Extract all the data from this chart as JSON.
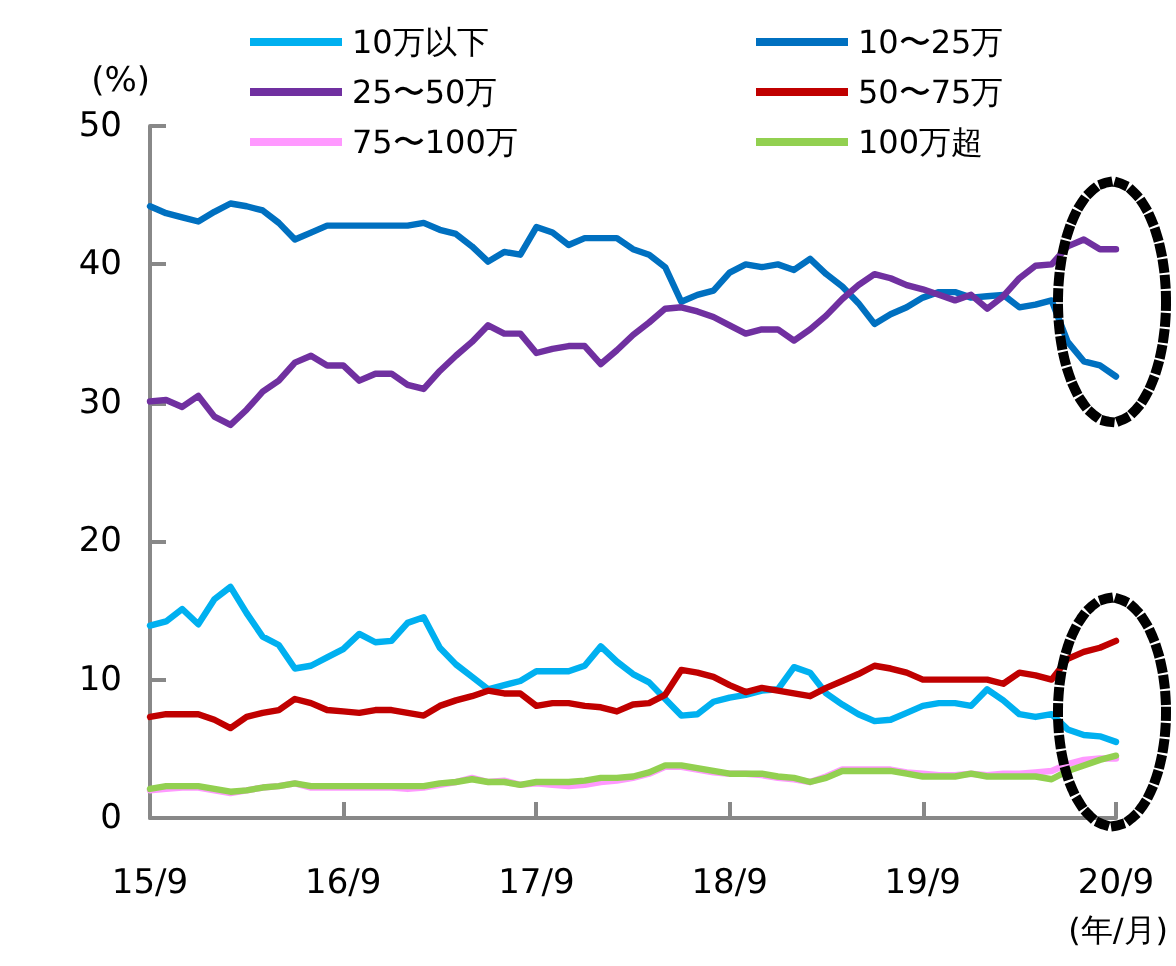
{
  "chart_data": {
    "type": "line",
    "ylabel": "(%)",
    "xlabel": "(年/月)",
    "categories": [
      "15/9",
      null,
      null,
      null,
      null,
      null,
      null,
      null,
      null,
      null,
      null,
      null,
      "16/9",
      null,
      null,
      null,
      null,
      null,
      null,
      null,
      null,
      null,
      null,
      null,
      "17/9",
      null,
      null,
      null,
      null,
      null,
      null,
      null,
      null,
      null,
      null,
      null,
      "18/9",
      null,
      null,
      null,
      null,
      null,
      null,
      null,
      null,
      null,
      null,
      null,
      "19/9",
      null,
      null,
      null,
      null,
      null,
      null,
      null,
      null,
      null,
      null,
      null,
      "20/9"
    ],
    "series": [
      {
        "name": "10万以下",
        "color": "#00b0f0",
        "values": [
          13.9,
          14.2,
          15.1,
          14.0,
          15.8,
          16.7,
          14.8,
          13.1,
          12.5,
          10.8,
          11.0,
          11.6,
          12.2,
          13.3,
          12.7,
          12.8,
          14.1,
          14.5,
          12.3,
          11.1,
          10.2,
          9.3,
          9.6,
          9.9,
          10.6,
          10.6,
          10.6,
          11.0,
          12.4,
          11.3,
          10.4,
          9.8,
          8.6,
          7.4,
          7.5,
          8.4,
          8.7,
          8.9,
          9.2,
          9.3,
          10.9,
          10.5,
          9.0,
          8.2,
          7.5,
          7.0,
          7.1,
          7.6,
          8.1,
          8.3,
          8.3,
          8.1,
          9.3,
          8.5,
          7.5,
          7.3,
          7.5,
          6.4,
          6.0,
          5.9,
          5.5
        ]
      },
      {
        "name": "10〜25万",
        "color": "#0070c0",
        "values": [
          44.2,
          43.7,
          43.4,
          43.1,
          43.8,
          44.4,
          44.2,
          43.9,
          43.0,
          41.8,
          42.3,
          42.8,
          42.8,
          42.8,
          42.8,
          42.8,
          42.8,
          43.0,
          42.5,
          42.2,
          41.3,
          40.2,
          40.9,
          40.7,
          42.7,
          42.3,
          41.4,
          41.9,
          41.9,
          41.9,
          41.1,
          40.7,
          39.8,
          37.3,
          37.8,
          38.1,
          39.4,
          40.0,
          39.8,
          40.0,
          39.6,
          40.4,
          39.3,
          38.4,
          37.2,
          35.7,
          36.4,
          36.9,
          37.6,
          38.0,
          38.0,
          37.6,
          37.7,
          37.8,
          36.9,
          37.1,
          37.4,
          34.4,
          33.0,
          32.7,
          31.9
        ]
      },
      {
        "name": "25〜50万",
        "color": "#7030a0",
        "values": [
          30.1,
          30.2,
          29.7,
          30.5,
          29.0,
          28.4,
          29.5,
          30.8,
          31.6,
          32.9,
          33.4,
          32.7,
          32.7,
          31.6,
          32.1,
          32.1,
          31.3,
          31.0,
          32.3,
          33.4,
          34.4,
          35.6,
          35.0,
          35.0,
          33.6,
          33.9,
          34.1,
          34.1,
          32.8,
          33.8,
          34.9,
          35.8,
          36.8,
          36.9,
          36.6,
          36.2,
          35.6,
          35.0,
          35.3,
          35.3,
          34.5,
          35.3,
          36.3,
          37.5,
          38.5,
          39.3,
          39.0,
          38.5,
          38.2,
          37.8,
          37.4,
          37.8,
          36.8,
          37.7,
          39.0,
          39.9,
          40.0,
          41.3,
          41.8,
          41.1,
          41.1
        ]
      },
      {
        "name": "50〜75万",
        "color": "#c00000",
        "values": [
          7.3,
          7.5,
          7.5,
          7.5,
          7.1,
          6.5,
          7.3,
          7.6,
          7.8,
          8.6,
          8.3,
          7.8,
          7.7,
          7.6,
          7.8,
          7.8,
          7.6,
          7.4,
          8.1,
          8.5,
          8.8,
          9.2,
          9.0,
          9.0,
          8.1,
          8.3,
          8.3,
          8.1,
          8.0,
          7.7,
          8.2,
          8.3,
          8.9,
          10.7,
          10.5,
          10.2,
          9.6,
          9.1,
          9.4,
          9.2,
          9.0,
          8.8,
          9.4,
          9.9,
          10.4,
          11.0,
          10.8,
          10.5,
          10.0,
          10.0,
          10.0,
          10.0,
          10.0,
          9.7,
          10.5,
          10.3,
          10.0,
          11.5,
          12.0,
          12.3,
          12.8
        ]
      },
      {
        "name": "75〜100万",
        "color": "#ff99ff",
        "values": [
          2.0,
          2.1,
          2.2,
          2.2,
          2.0,
          1.8,
          2.0,
          2.2,
          2.3,
          2.5,
          2.2,
          2.2,
          2.2,
          2.2,
          2.2,
          2.2,
          2.1,
          2.2,
          2.4,
          2.6,
          2.9,
          2.6,
          2.7,
          2.4,
          2.5,
          2.4,
          2.3,
          2.4,
          2.6,
          2.7,
          2.9,
          3.2,
          3.7,
          3.7,
          3.5,
          3.3,
          3.2,
          3.2,
          3.1,
          2.9,
          2.8,
          2.6,
          3.0,
          3.5,
          3.5,
          3.5,
          3.5,
          3.3,
          3.2,
          3.1,
          3.1,
          3.2,
          3.1,
          3.2,
          3.2,
          3.3,
          3.4,
          3.9,
          4.2,
          4.3,
          4.3
        ]
      },
      {
        "name": "100万超",
        "color": "#92d050",
        "values": [
          2.1,
          2.3,
          2.3,
          2.3,
          2.1,
          1.9,
          2.0,
          2.2,
          2.3,
          2.5,
          2.3,
          2.3,
          2.3,
          2.3,
          2.3,
          2.3,
          2.3,
          2.3,
          2.5,
          2.6,
          2.8,
          2.6,
          2.6,
          2.4,
          2.6,
          2.6,
          2.6,
          2.7,
          2.9,
          2.9,
          3.0,
          3.3,
          3.8,
          3.8,
          3.6,
          3.4,
          3.2,
          3.2,
          3.2,
          3.0,
          2.9,
          2.6,
          2.9,
          3.4,
          3.4,
          3.4,
          3.4,
          3.2,
          3.0,
          3.0,
          3.0,
          3.2,
          3.0,
          3.0,
          3.0,
          3.0,
          2.8,
          3.4,
          3.8,
          4.2,
          4.5
        ]
      }
    ],
    "ylim": [
      0,
      50
    ],
    "yticks": [
      0,
      10,
      20,
      30,
      40,
      50
    ],
    "grid": false,
    "legend": "top",
    "marker": "none",
    "line_style": "solid"
  }
}
